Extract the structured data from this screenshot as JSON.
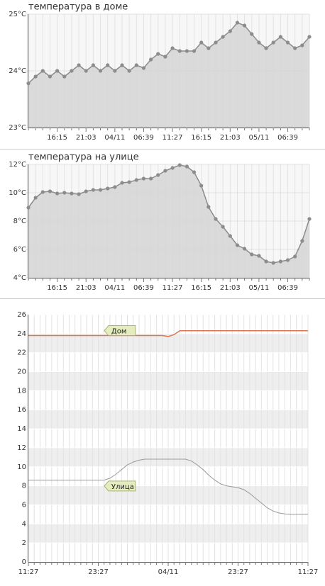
{
  "chart_data": [
    {
      "type": "area",
      "title": "температура в доме",
      "color": "#8c8c8c",
      "fill": "#d6d6d6",
      "grid": true,
      "categories": [
        null,
        null,
        null,
        null,
        "16:15",
        null,
        null,
        null,
        "21:03",
        null,
        null,
        null,
        "04/11",
        null,
        null,
        null,
        "06:39",
        null,
        null,
        null,
        "11:27",
        null,
        null,
        null,
        "16:15",
        null,
        null,
        null,
        "21:03",
        null,
        null,
        null,
        "05/11",
        null,
        null,
        null,
        "06:39",
        null,
        null,
        null
      ],
      "values": [
        23.78,
        23.9,
        24.0,
        23.9,
        24.0,
        23.9,
        24.0,
        24.1,
        24.0,
        24.1,
        24.0,
        24.1,
        24.0,
        24.1,
        24.0,
        24.1,
        24.05,
        24.2,
        24.3,
        24.25,
        24.4,
        24.35,
        24.35,
        24.35,
        24.5,
        24.4,
        24.5,
        24.6,
        24.7,
        24.85,
        24.8,
        24.65,
        24.5,
        24.4,
        24.5,
        24.6,
        24.5,
        24.4,
        24.45,
        24.6
      ],
      "ylim": [
        23,
        25
      ],
      "yticks": [
        {
          "value": 23,
          "label": "23°C"
        },
        {
          "value": 24,
          "label": "24°C"
        },
        {
          "value": 25,
          "label": "25°C"
        }
      ]
    },
    {
      "type": "area",
      "title": "температура на улице",
      "color": "#8c8c8c",
      "fill": "#d6d6d6",
      "grid": true,
      "categories": [
        null,
        null,
        null,
        null,
        "16:15",
        null,
        null,
        null,
        "21:03",
        null,
        null,
        null,
        "04/11",
        null,
        null,
        null,
        "06:39",
        null,
        null,
        null,
        "11:27",
        null,
        null,
        null,
        "16:15",
        null,
        null,
        null,
        "21:03",
        null,
        null,
        null,
        "05/11",
        null,
        null,
        null,
        "06:39",
        null,
        null,
        null
      ],
      "values": [
        8.95,
        9.65,
        10.05,
        10.1,
        9.95,
        10.0,
        9.95,
        9.9,
        10.1,
        10.2,
        10.2,
        10.3,
        10.4,
        10.7,
        10.75,
        10.9,
        11.0,
        11.0,
        11.25,
        11.55,
        11.75,
        11.95,
        11.85,
        11.45,
        10.5,
        9.0,
        8.15,
        7.6,
        6.95,
        6.3,
        6.05,
        5.65,
        5.55,
        5.15,
        5.05,
        5.15,
        5.25,
        5.5,
        6.6,
        8.15
      ],
      "ylim": [
        4,
        12
      ],
      "yticks": [
        {
          "value": 4,
          "label": "4°C"
        },
        {
          "value": 6,
          "label": "6°C"
        },
        {
          "value": 8,
          "label": "8°C"
        },
        {
          "value": 10,
          "label": "10°C"
        },
        {
          "value": 12,
          "label": "12°C"
        }
      ]
    },
    {
      "type": "line",
      "grid": true,
      "categories": [
        "11:27",
        null,
        null,
        null,
        null,
        null,
        null,
        null,
        null,
        null,
        null,
        null,
        "23:27",
        null,
        null,
        null,
        null,
        null,
        null,
        null,
        null,
        null,
        null,
        null,
        "04/11",
        null,
        null,
        null,
        null,
        null,
        null,
        null,
        null,
        null,
        null,
        null,
        "23:27",
        null,
        null,
        null,
        null,
        null,
        null,
        null,
        null,
        null,
        null,
        null,
        "11:27"
      ],
      "series": [
        {
          "name": "Дом",
          "color": "#d9764e",
          "values": [
            23.8,
            23.8,
            23.8,
            23.8,
            23.8,
            23.8,
            23.8,
            23.8,
            23.8,
            23.8,
            23.8,
            23.8,
            23.8,
            23.8,
            23.8,
            23.8,
            23.8,
            23.8,
            23.8,
            23.8,
            23.8,
            23.8,
            23.8,
            23.8,
            23.7,
            23.9,
            24.3,
            24.3,
            24.3,
            24.3,
            24.3,
            24.3,
            24.3,
            24.3,
            24.3,
            24.3,
            24.3,
            24.3,
            24.3,
            24.3,
            24.3,
            24.3,
            24.3,
            24.3,
            24.3,
            24.3,
            24.3,
            24.3,
            24.3
          ]
        },
        {
          "name": "Улица",
          "color": "#999999",
          "values": [
            8.6,
            8.6,
            8.6,
            8.6,
            8.6,
            8.6,
            8.6,
            8.6,
            8.6,
            8.6,
            8.6,
            8.6,
            8.6,
            8.6,
            8.8,
            9.2,
            9.7,
            10.2,
            10.5,
            10.7,
            10.8,
            10.8,
            10.8,
            10.8,
            10.8,
            10.8,
            10.8,
            10.8,
            10.6,
            10.2,
            9.7,
            9.1,
            8.6,
            8.2,
            8.0,
            7.9,
            7.8,
            7.6,
            7.2,
            6.7,
            6.2,
            5.7,
            5.35,
            5.15,
            5.05,
            5.0,
            5.0,
            5.0,
            5.0
          ]
        }
      ],
      "ylim": [
        0,
        26
      ],
      "yticks": [
        0,
        2,
        4,
        6,
        8,
        10,
        12,
        14,
        16,
        18,
        20,
        22,
        24,
        26
      ]
    }
  ]
}
